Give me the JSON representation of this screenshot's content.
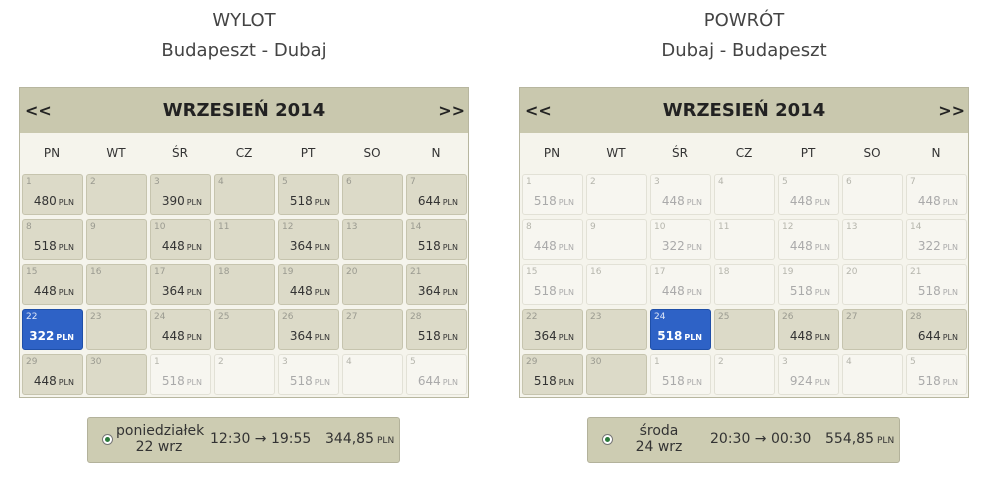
{
  "panels": [
    {
      "heading": "WYLOT",
      "route": "Budapeszt - Dubaj",
      "prev": "<<",
      "next": ">>",
      "month": "WRZESIEŃ 2014",
      "weekdays": [
        "PN",
        "WT",
        "ŚR",
        "CZ",
        "PT",
        "SO",
        "N"
      ],
      "days": [
        {
          "day": 1,
          "price": 480,
          "currency": "PLN",
          "state": "available"
        },
        {
          "day": 2,
          "state": "empty"
        },
        {
          "day": 3,
          "price": 390,
          "currency": "PLN",
          "state": "available"
        },
        {
          "day": 4,
          "state": "empty"
        },
        {
          "day": 5,
          "price": 518,
          "currency": "PLN",
          "state": "available"
        },
        {
          "day": 6,
          "state": "empty"
        },
        {
          "day": 7,
          "price": 644,
          "currency": "PLN",
          "state": "available"
        },
        {
          "day": 8,
          "price": 518,
          "currency": "PLN",
          "state": "available"
        },
        {
          "day": 9,
          "state": "empty"
        },
        {
          "day": 10,
          "price": 448,
          "currency": "PLN",
          "state": "available"
        },
        {
          "day": 11,
          "state": "empty"
        },
        {
          "day": 12,
          "price": 364,
          "currency": "PLN",
          "state": "available"
        },
        {
          "day": 13,
          "state": "empty"
        },
        {
          "day": 14,
          "price": 518,
          "currency": "PLN",
          "state": "available"
        },
        {
          "day": 15,
          "price": 448,
          "currency": "PLN",
          "state": "available"
        },
        {
          "day": 16,
          "state": "empty"
        },
        {
          "day": 17,
          "price": 364,
          "currency": "PLN",
          "state": "available"
        },
        {
          "day": 18,
          "state": "empty"
        },
        {
          "day": 19,
          "price": 448,
          "currency": "PLN",
          "state": "available"
        },
        {
          "day": 20,
          "state": "empty"
        },
        {
          "day": 21,
          "price": 364,
          "currency": "PLN",
          "state": "available"
        },
        {
          "day": 22,
          "price": 322,
          "currency": "PLN",
          "state": "selected"
        },
        {
          "day": 23,
          "state": "empty"
        },
        {
          "day": 24,
          "price": 448,
          "currency": "PLN",
          "state": "available"
        },
        {
          "day": 25,
          "state": "empty"
        },
        {
          "day": 26,
          "price": 364,
          "currency": "PLN",
          "state": "available"
        },
        {
          "day": 27,
          "state": "empty"
        },
        {
          "day": 28,
          "price": 518,
          "currency": "PLN",
          "state": "available"
        },
        {
          "day": 29,
          "price": 448,
          "currency": "PLN",
          "state": "available"
        },
        {
          "day": 30,
          "state": "empty"
        },
        {
          "day": 1,
          "price": 518,
          "currency": "PLN",
          "state": "disabled"
        },
        {
          "day": 2,
          "state": "disabled"
        },
        {
          "day": 3,
          "price": 518,
          "currency": "PLN",
          "state": "disabled"
        },
        {
          "day": 4,
          "state": "disabled"
        },
        {
          "day": 5,
          "price": 644,
          "currency": "PLN",
          "state": "disabled"
        }
      ],
      "selection": {
        "weekday": "poniedziałek",
        "date": "22 wrz",
        "time": "12:30 → 19:55",
        "price": "344,85",
        "currency": "PLN"
      }
    },
    {
      "heading": "POWRÓT",
      "route": "Dubaj - Budapeszt",
      "prev": "<<",
      "next": ">>",
      "month": "WRZESIEŃ 2014",
      "weekdays": [
        "PN",
        "WT",
        "ŚR",
        "CZ",
        "PT",
        "SO",
        "N"
      ],
      "days": [
        {
          "day": 1,
          "price": 518,
          "currency": "PLN",
          "state": "disabled"
        },
        {
          "day": 2,
          "state": "disabled"
        },
        {
          "day": 3,
          "price": 448,
          "currency": "PLN",
          "state": "disabled"
        },
        {
          "day": 4,
          "state": "disabled"
        },
        {
          "day": 5,
          "price": 448,
          "currency": "PLN",
          "state": "disabled"
        },
        {
          "day": 6,
          "state": "disabled"
        },
        {
          "day": 7,
          "price": 448,
          "currency": "PLN",
          "state": "disabled"
        },
        {
          "day": 8,
          "price": 448,
          "currency": "PLN",
          "state": "disabled"
        },
        {
          "day": 9,
          "state": "disabled"
        },
        {
          "day": 10,
          "price": 322,
          "currency": "PLN",
          "state": "disabled"
        },
        {
          "day": 11,
          "state": "disabled"
        },
        {
          "day": 12,
          "price": 448,
          "currency": "PLN",
          "state": "disabled"
        },
        {
          "day": 13,
          "state": "disabled"
        },
        {
          "day": 14,
          "price": 322,
          "currency": "PLN",
          "state": "disabled"
        },
        {
          "day": 15,
          "price": 518,
          "currency": "PLN",
          "state": "disabled"
        },
        {
          "day": 16,
          "state": "disabled"
        },
        {
          "day": 17,
          "price": 448,
          "currency": "PLN",
          "state": "disabled"
        },
        {
          "day": 18,
          "state": "disabled"
        },
        {
          "day": 19,
          "price": 518,
          "currency": "PLN",
          "state": "disabled"
        },
        {
          "day": 20,
          "state": "disabled"
        },
        {
          "day": 21,
          "price": 518,
          "currency": "PLN",
          "state": "disabled"
        },
        {
          "day": 22,
          "price": 364,
          "currency": "PLN",
          "state": "available"
        },
        {
          "day": 23,
          "state": "empty"
        },
        {
          "day": 24,
          "price": 518,
          "currency": "PLN",
          "state": "selected"
        },
        {
          "day": 25,
          "state": "empty"
        },
        {
          "day": 26,
          "price": 448,
          "currency": "PLN",
          "state": "available"
        },
        {
          "day": 27,
          "state": "empty"
        },
        {
          "day": 28,
          "price": 644,
          "currency": "PLN",
          "state": "available"
        },
        {
          "day": 29,
          "price": 518,
          "currency": "PLN",
          "state": "available"
        },
        {
          "day": 30,
          "state": "empty"
        },
        {
          "day": 1,
          "price": 518,
          "currency": "PLN",
          "state": "disabled"
        },
        {
          "day": 2,
          "state": "disabled"
        },
        {
          "day": 3,
          "price": 924,
          "currency": "PLN",
          "state": "disabled"
        },
        {
          "day": 4,
          "state": "disabled"
        },
        {
          "day": 5,
          "price": 518,
          "currency": "PLN",
          "state": "disabled"
        }
      ],
      "selection": {
        "weekday": "środa",
        "date": "24 wrz",
        "time": "20:30 → 00:30",
        "price": "554,85",
        "currency": "PLN"
      }
    }
  ]
}
